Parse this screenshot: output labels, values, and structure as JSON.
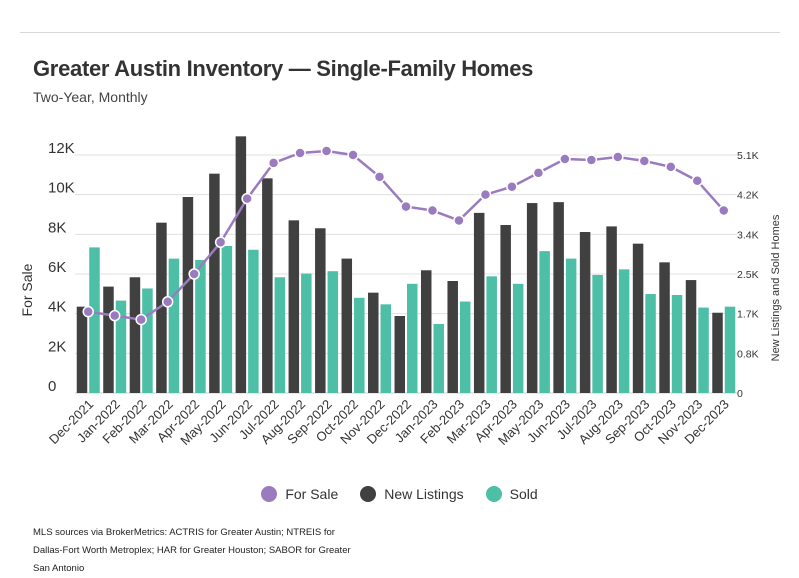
{
  "header": {
    "title": "Greater Austin Inventory — Single-Family Homes",
    "subtitle": "Two-Year, Monthly"
  },
  "footer": {
    "source": "MLS sources via BrokerMetrics: ACTRIS for Greater Austin; NTREIS for Dallas-Fort Worth Metroplex; HAR for Greater Houston; SABOR for Greater San Antonio"
  },
  "colors": {
    "for_sale": "#9b7bbf",
    "new_listings": "#404040",
    "sold": "#4dbfa6",
    "grid": "#e0e0e0"
  },
  "chart_data": {
    "type": "bar",
    "categories": [
      "Dec-2021",
      "Jan-2022",
      "Feb-2022",
      "Mar-2022",
      "Apr-2022",
      "May-2022",
      "Jun-2022",
      "Jul-2022",
      "Aug-2022",
      "Sep-2022",
      "Oct-2022",
      "Nov-2022",
      "Dec-2022",
      "Jan-2023",
      "Feb-2023",
      "Mar-2023",
      "Apr-2023",
      "May-2023",
      "Jun-2023",
      "Jul-2023",
      "Aug-2023",
      "Sep-2023",
      "Oct-2023",
      "Nov-2023",
      "Dec-2023"
    ],
    "left_axis": {
      "label": "For Sale",
      "ylim": [
        0,
        12000
      ],
      "ticks": [
        0,
        2000,
        4000,
        6000,
        8000,
        10000,
        12000
      ],
      "tick_labels": [
        "0",
        "2K",
        "4K",
        "6K",
        "8K",
        "10K",
        "12K"
      ]
    },
    "right_axis": {
      "label": "New Listings and Sold Homes",
      "ylim": [
        0,
        5100
      ],
      "ticks": [
        0,
        850,
        1700,
        2550,
        3400,
        4250,
        5100
      ],
      "tick_labels": [
        "0",
        "0.8K",
        "1.7K",
        "2.5K",
        "3.4K",
        "4.2K",
        "5.1K"
      ]
    },
    "series": [
      {
        "name": "For Sale",
        "type": "line",
        "axis": "left",
        "values": [
          4100,
          3900,
          3700,
          4600,
          6000,
          7600,
          9800,
          11600,
          12100,
          12200,
          12000,
          10900,
          9400,
          9200,
          8700,
          10000,
          10400,
          11100,
          11800,
          11750,
          11900,
          11700,
          11400,
          10700,
          9200
        ]
      },
      {
        "name": "New Listings",
        "type": "bar",
        "axis": "right",
        "values": [
          1850,
          2280,
          2480,
          3650,
          4200,
          4700,
          5500,
          4600,
          3700,
          3530,
          2880,
          2150,
          1650,
          2630,
          2400,
          3860,
          3600,
          4070,
          4090,
          3450,
          3570,
          3200,
          2800,
          2420,
          1720
        ]
      },
      {
        "name": "Sold",
        "type": "bar",
        "axis": "right",
        "values": [
          3120,
          1980,
          2240,
          2880,
          2850,
          3150,
          3070,
          2480,
          2560,
          2610,
          2040,
          1900,
          2340,
          1480,
          1960,
          2500,
          2340,
          3040,
          2880,
          2530,
          2650,
          2120,
          2100,
          1830,
          1850
        ]
      }
    ],
    "legend": [
      "For Sale",
      "New Listings",
      "Sold"
    ],
    "legend_position": "bottom",
    "grid": true
  }
}
